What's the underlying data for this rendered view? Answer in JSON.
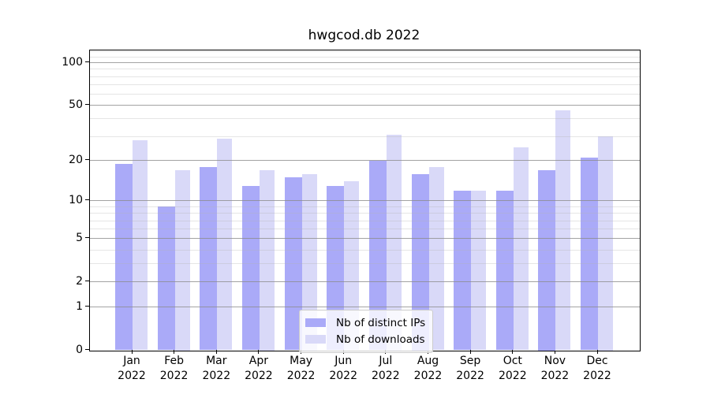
{
  "title": "hwgcod.db 2022",
  "chart_data": {
    "type": "bar",
    "title": "hwgcod.db 2022",
    "categories": [
      "Jan",
      "Feb",
      "Mar",
      "Apr",
      "May",
      "Jun",
      "Jul",
      "Aug",
      "Sep",
      "Oct",
      "Nov",
      "Dec"
    ],
    "category_sublabel": "2022",
    "series": [
      {
        "name": "Nb of distinct IPs",
        "color": "#aaaaf8",
        "values": [
          19,
          9,
          18,
          13,
          15,
          13,
          20,
          16,
          12,
          12,
          17,
          21
        ]
      },
      {
        "name": "Nb of downloads",
        "color": "#d9d9f8",
        "values": [
          28,
          17,
          29,
          17,
          16,
          14,
          31,
          18,
          12,
          25,
          46,
          30
        ]
      }
    ],
    "yscale": "log1p",
    "ylim": [
      0,
      122
    ],
    "yticks": [
      0,
      1,
      2,
      5,
      10,
      20,
      50,
      100
    ],
    "yticks_minor": [
      3,
      4,
      6,
      7,
      8,
      9,
      30,
      40,
      60,
      70,
      80,
      90,
      110,
      120
    ],
    "grid": "both",
    "legend_position": "lower center"
  }
}
